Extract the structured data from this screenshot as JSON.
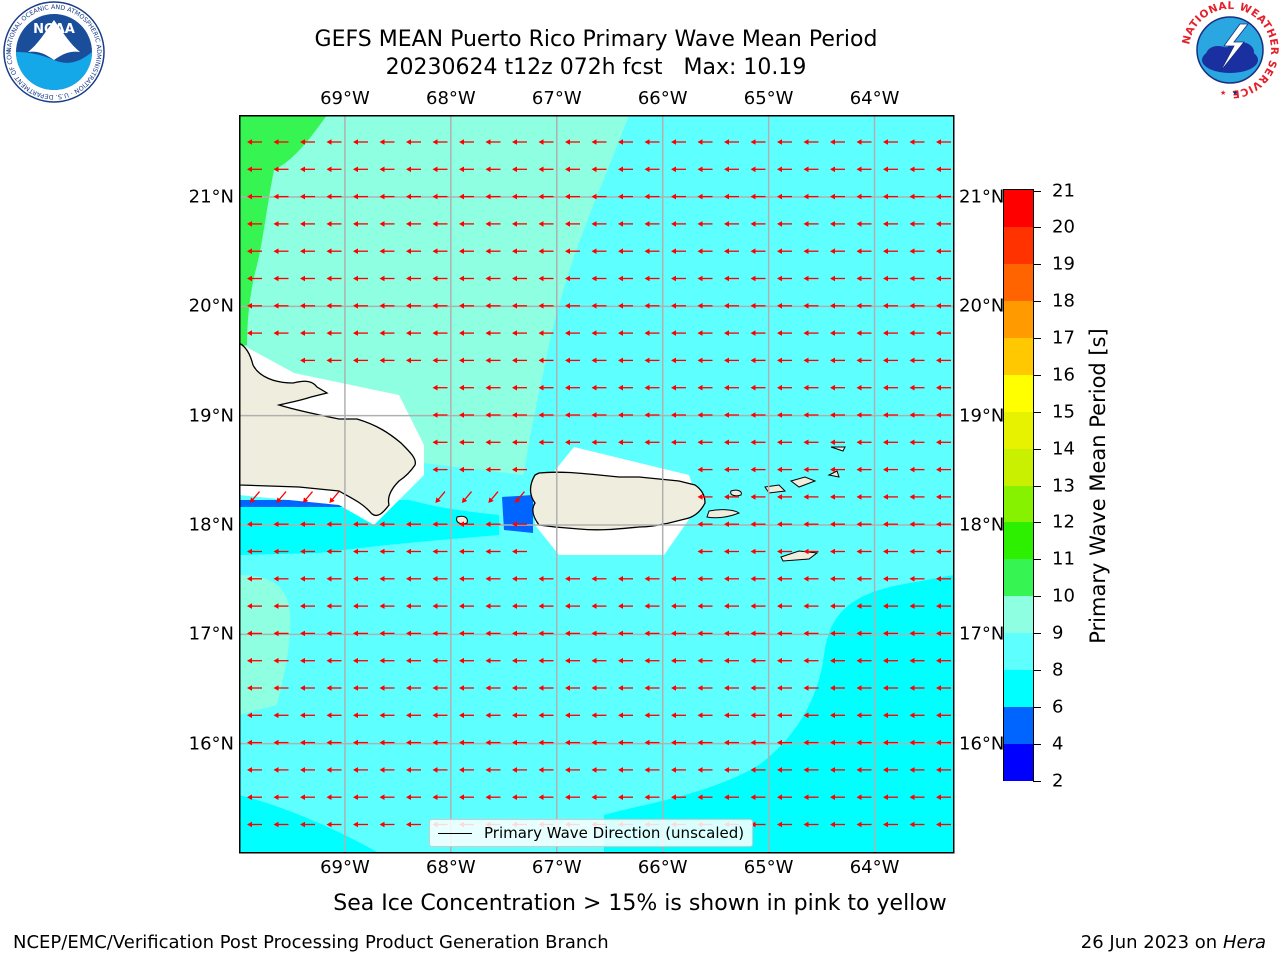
{
  "header": {
    "title_line1": "GEFS MEAN Puerto Rico Primary Wave Mean Period",
    "run": "20230624 t12z 072h fcst",
    "max_label": "Max: 10.19"
  },
  "map": {
    "lon_ticks": [
      "69°W",
      "68°W",
      "67°W",
      "66°W",
      "65°W",
      "64°W"
    ],
    "lat_ticks": [
      "21°N",
      "20°N",
      "19°N",
      "18°N",
      "17°N",
      "16°N"
    ],
    "lon_range": [
      -70.0,
      -63.25
    ],
    "lat_range": [
      15.0,
      21.75
    ],
    "vector_color": "#ff0000",
    "vector_direction": "westward",
    "land_color": "#efedde",
    "legend_label": "Primary Wave Direction (unscaled)"
  },
  "colorbar": {
    "title": "Primary Wave Mean Period [s]",
    "tick_labels": [
      "21",
      "20",
      "19",
      "18",
      "17",
      "16",
      "15",
      "14",
      "13",
      "12",
      "11",
      "10",
      "9",
      "8",
      "6",
      "4",
      "2"
    ],
    "bins": [
      {
        "from": 2,
        "to": 4,
        "color": "#0000ff"
      },
      {
        "from": 4,
        "to": 6,
        "color": "#0064ff"
      },
      {
        "from": 6,
        "to": 8,
        "color": "#00ffff"
      },
      {
        "from": 8,
        "to": 9,
        "color": "#5effff"
      },
      {
        "from": 9,
        "to": 10,
        "color": "#8effe0"
      },
      {
        "from": 10,
        "to": 11,
        "color": "#36f552"
      },
      {
        "from": 11,
        "to": 12,
        "color": "#2cf000"
      },
      {
        "from": 12,
        "to": 13,
        "color": "#86f200"
      },
      {
        "from": 13,
        "to": 14,
        "color": "#c8f000"
      },
      {
        "from": 14,
        "to": 15,
        "color": "#e6f200"
      },
      {
        "from": 15,
        "to": 16,
        "color": "#ffff00"
      },
      {
        "from": 16,
        "to": 17,
        "color": "#ffc800"
      },
      {
        "from": 17,
        "to": 18,
        "color": "#ff9a00"
      },
      {
        "from": 18,
        "to": 19,
        "color": "#ff6400"
      },
      {
        "from": 19,
        "to": 20,
        "color": "#ff3200"
      },
      {
        "from": 20,
        "to": 21,
        "color": "#ff0000"
      }
    ]
  },
  "caption": "Sea Ice Concentration > 15% is shown in pink to yellow",
  "footer": {
    "left": "NCEP/EMC/Verification Post Processing Product Generation Branch",
    "date": "26 Jun 2023",
    "on": "on",
    "machine": "Hera"
  },
  "logos": {
    "noaa_text": "NOAA",
    "noaa_ring_text": "NATIONAL OCEANIC AND ATMOSPHERIC ADMINISTRATION · U.S. DEPARTMENT OF COMMERCE",
    "nws_ring_text": "NATIONAL WEATHER SERVICE"
  }
}
